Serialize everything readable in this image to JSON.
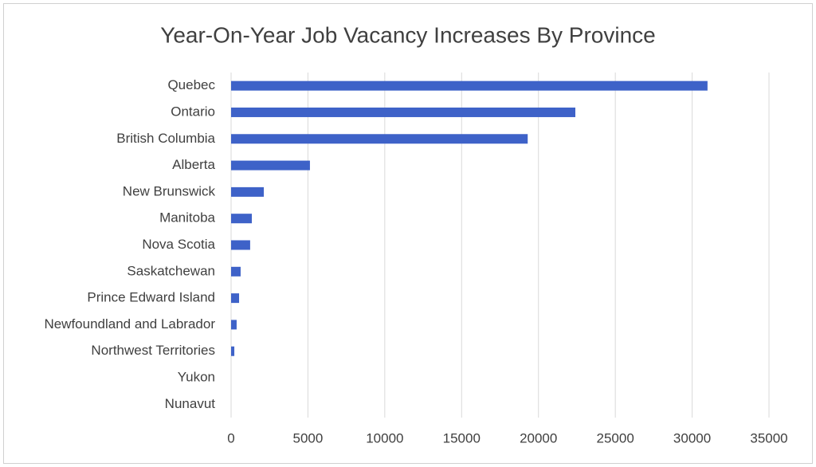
{
  "chart_data": {
    "type": "hbar",
    "title": "Year-On-Year Job Vacancy Increases By Province",
    "categories": [
      "Quebec",
      "Ontario",
      "British Columbia",
      "Alberta",
      "New Brunswick",
      "Manitoba",
      "Nova Scotia",
      "Saskatchewan",
      "Prince Edward Island",
      "Newfoundland and Labrador",
      "Northwest Territories",
      "Yukon",
      "Nunavut"
    ],
    "values": [
      31000,
      22400,
      19300,
      5130,
      2130,
      1350,
      1240,
      620,
      520,
      360,
      210,
      0,
      0
    ],
    "color": "#3e62c8",
    "xlim": [
      0,
      35000
    ],
    "xticks": [
      0,
      5000,
      10000,
      15000,
      20000,
      25000,
      30000,
      35000
    ],
    "grid": true
  }
}
